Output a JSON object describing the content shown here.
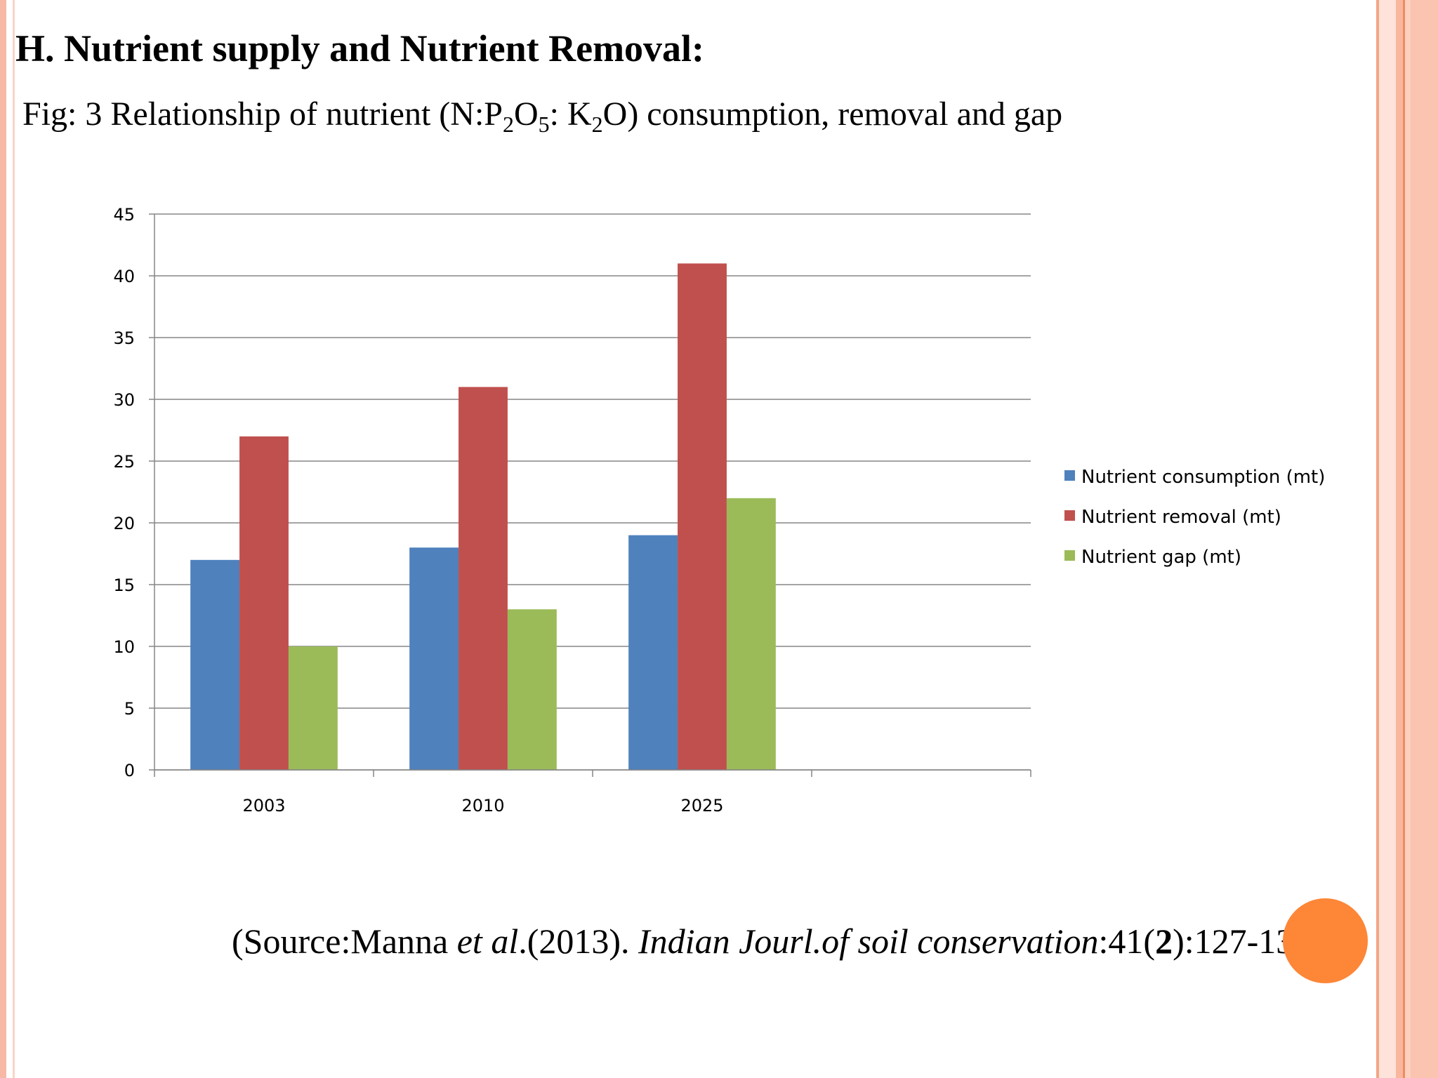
{
  "slide": {
    "heading": "H. Nutrient supply and Nutrient Removal:",
    "caption": {
      "prefix": "Fig: 3 Relationship of nutrient (N:P",
      "sub1": "2",
      "mid1": "O",
      "sub2": "5",
      "mid2": ": K",
      "sub3": "2",
      "suffix": "O) consumption, removal and gap"
    },
    "source": {
      "part1": "(Source:Manna ",
      "part2_italic": "et al",
      "part3": ".(2013). ",
      "part4_italic": "Indian Jourl.of soil conservation",
      "part5": ":41(",
      "part6_bold": "2",
      "part7": "):127-135)"
    }
  },
  "colors": {
    "consumption": "#4f81bd",
    "removal": "#c0504d",
    "gap": "#9bbb59",
    "accent_circle": "#fd8637",
    "border": "#f7b9a6"
  },
  "chart_data": {
    "type": "bar",
    "categories": [
      "2003",
      "2010",
      "2025",
      ""
    ],
    "series": [
      {
        "name": "Nutrient consumption (mt)",
        "values": [
          17,
          18,
          19,
          null
        ]
      },
      {
        "name": "Nutrient removal (mt)",
        "values": [
          27,
          31,
          41,
          null
        ]
      },
      {
        "name": "Nutrient gap (mt)",
        "values": [
          10,
          13,
          22,
          null
        ]
      }
    ],
    "y_ticks": [
      "0",
      "5",
      "10",
      "15",
      "20",
      "25",
      "30",
      "35",
      "40",
      "45"
    ],
    "ylim": [
      0,
      45
    ],
    "grid": true,
    "legend": "right"
  }
}
